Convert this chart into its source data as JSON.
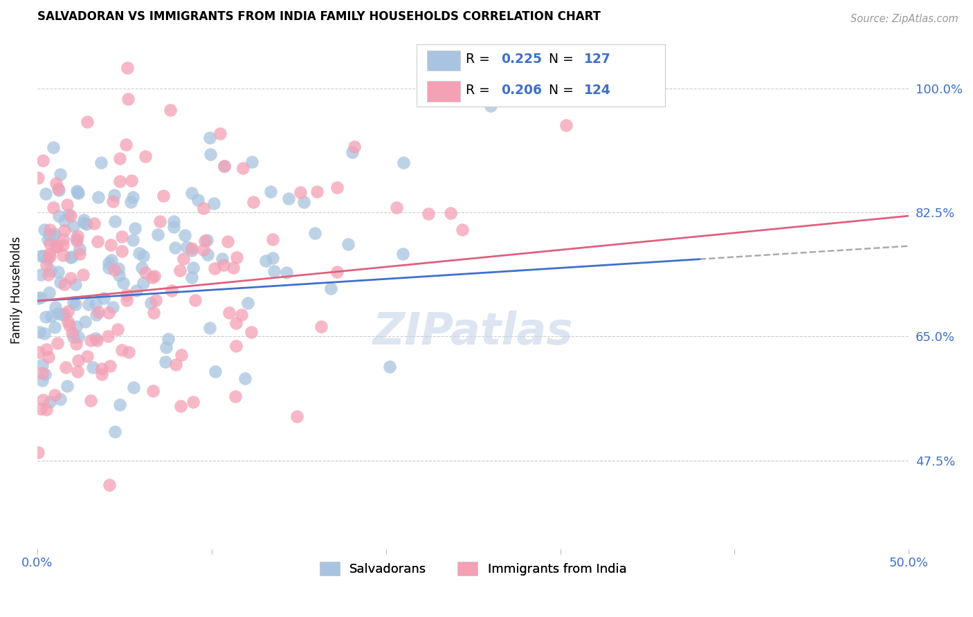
{
  "title": "SALVADORAN VS IMMIGRANTS FROM INDIA FAMILY HOUSEHOLDS CORRELATION CHART",
  "source": "Source: ZipAtlas.com",
  "ylabel": "Family Households",
  "xlim": [
    0.0,
    0.5
  ],
  "ylim": [
    0.35,
    1.08
  ],
  "xticks": [
    0.0,
    0.1,
    0.2,
    0.3,
    0.4,
    0.5
  ],
  "xtick_labels": [
    "0.0%",
    "",
    "",
    "",
    "",
    "50.0%"
  ],
  "ytick_labels": [
    "47.5%",
    "65.0%",
    "82.5%",
    "100.0%"
  ],
  "yticks": [
    0.475,
    0.65,
    0.825,
    1.0
  ],
  "blue_color": "#a8c4e0",
  "pink_color": "#f4a0b5",
  "blue_line_color": "#4070c8",
  "pink_line_color": "#e06080",
  "dash_line_color": "#aaaaaa",
  "axis_color": "#4070c8",
  "r_blue": 0.225,
  "n_blue": 127,
  "r_pink": 0.206,
  "n_pink": 124,
  "legend_label_blue": "Salvadorans",
  "legend_label_pink": "Immigrants from India",
  "blue_intercept": 0.7,
  "blue_slope": 0.155,
  "pink_intercept": 0.7,
  "pink_slope": 0.24,
  "blue_line_end_x": 0.38,
  "watermark_text": "ZIPatlas",
  "watermark_color": "#c5d5e8",
  "watermark_alpha": 0.6
}
